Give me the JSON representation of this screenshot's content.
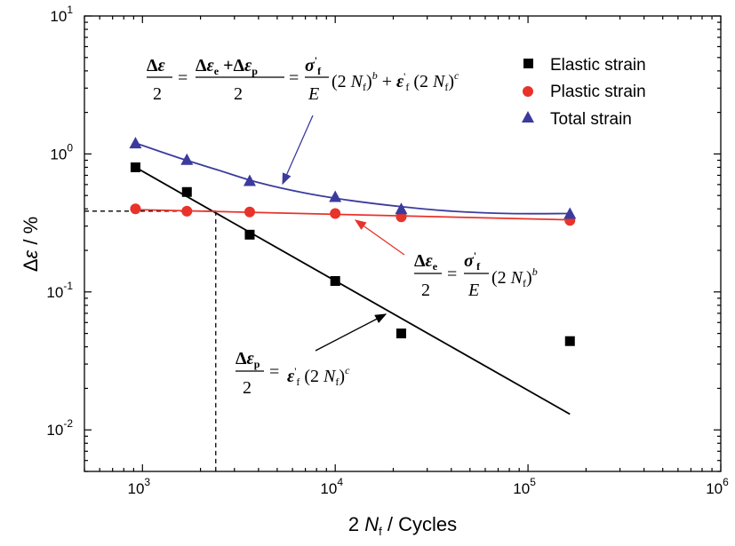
{
  "chart_data": {
    "type": "scatter",
    "xscale": "log",
    "yscale": "log",
    "xlim": [
      500,
      1000000
    ],
    "ylim": [
      0.005,
      10
    ],
    "xlabel": "2 N_f / Cycles",
    "ylabel": "Δε / %",
    "x_ticks": [
      {
        "base": "10",
        "exp": "3",
        "value": 1000
      },
      {
        "base": "10",
        "exp": "4",
        "value": 10000
      },
      {
        "base": "10",
        "exp": "5",
        "value": 100000
      },
      {
        "base": "10",
        "exp": "6",
        "value": 1000000
      }
    ],
    "y_ticks": [
      {
        "base": "10",
        "exp": "-2",
        "value": 0.01
      },
      {
        "base": "10",
        "exp": "-1",
        "value": 0.1
      },
      {
        "base": "10",
        "exp": "0",
        "value": 1
      },
      {
        "base": "10",
        "exp": "1",
        "value": 10
      }
    ],
    "legend_position": "top-right",
    "series": [
      {
        "name": "Elastic strain",
        "marker": "square",
        "color": "#000000",
        "x": [
          920,
          1700,
          3600,
          10000,
          22000,
          165000
        ],
        "y": [
          0.8,
          0.53,
          0.26,
          0.12,
          0.05,
          0.044
        ]
      },
      {
        "name": "Plastic strain",
        "marker": "circle",
        "color": "#e8332a",
        "x": [
          920,
          1700,
          3600,
          10000,
          22000,
          165000
        ],
        "y": [
          0.4,
          0.385,
          0.38,
          0.37,
          0.35,
          0.33
        ]
      },
      {
        "name": "Total strain",
        "marker": "triangle",
        "color": "#3b3b9e",
        "x": [
          920,
          1700,
          3600,
          10000,
          22000,
          165000
        ],
        "y": [
          1.2,
          0.91,
          0.64,
          0.49,
          0.4,
          0.37
        ]
      }
    ],
    "fit_lines": [
      {
        "series": "Elastic strain",
        "color": "#000000",
        "x_range": [
          920,
          165000
        ],
        "y_range": [
          0.8,
          0.013
        ]
      },
      {
        "series": "Plastic strain",
        "color": "#e8332a",
        "x_range": [
          920,
          165000
        ],
        "y_range": [
          0.395,
          0.333
        ]
      },
      {
        "series": "Total strain",
        "color": "#3b3b9e",
        "x": [
          920,
          1500,
          2500,
          4000,
          7000,
          12000,
          22000,
          40000,
          80000,
          165000
        ],
        "y": [
          1.2,
          0.95,
          0.76,
          0.62,
          0.52,
          0.46,
          0.415,
          0.385,
          0.37,
          0.37
        ]
      }
    ],
    "reference_lines": {
      "transition_y": 0.385,
      "transition_x": 2400
    },
    "annotations": {
      "total_equation": "Δε/2 = (Δε_e + Δε_p)/2 = σ'_f/E (2N_f)^b + ε'_f (2N_f)^c",
      "elastic_equation": "Δε_e/2 = σ'_f/E (2N_f)^b",
      "plastic_equation": "Δε_p/2 = ε'_f (2N_f)^c"
    }
  }
}
